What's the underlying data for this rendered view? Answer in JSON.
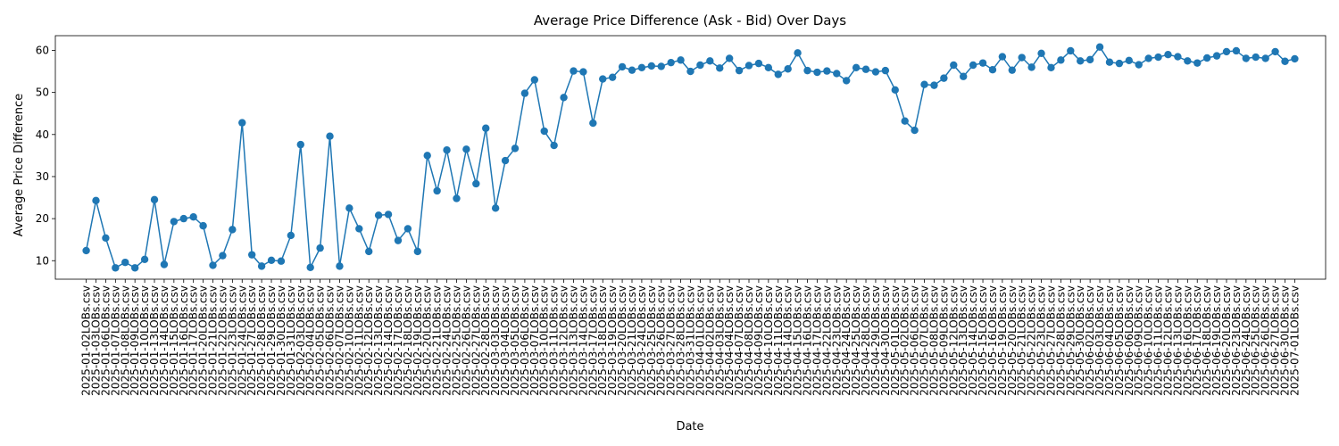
{
  "chart_data": {
    "type": "line",
    "title": "Average Price Difference (Ask - Bid) Over Days",
    "xlabel": "Date",
    "ylabel": "Average Price Difference",
    "ylim": [
      5.6,
      63.5
    ],
    "yticks": [
      10,
      20,
      30,
      40,
      50,
      60
    ],
    "grid": false,
    "line_color": "#1f77b4",
    "marker": "circle",
    "x": [
      "2025-01-02LOBs.csv",
      "2025-01-03LOBs.csv",
      "2025-01-06LOBs.csv",
      "2025-01-07LOBs.csv",
      "2025-01-08LOBs.csv",
      "2025-01-09LOBs.csv",
      "2025-01-10LOBs.csv",
      "2025-01-13LOBs.csv",
      "2025-01-14LOBs.csv",
      "2025-01-15LOBs.csv",
      "2025-01-16LOBs.csv",
      "2025-01-17LOBs.csv",
      "2025-01-20LOBs.csv",
      "2025-01-21LOBs.csv",
      "2025-01-22LOBs.csv",
      "2025-01-23LOBs.csv",
      "2025-01-24LOBs.csv",
      "2025-01-27LOBs.csv",
      "2025-01-28LOBs.csv",
      "2025-01-29LOBs.csv",
      "2025-01-30LOBs.csv",
      "2025-01-31LOBs.csv",
      "2025-02-03LOBs.csv",
      "2025-02-04LOBs.csv",
      "2025-02-05LOBs.csv",
      "2025-02-06LOBs.csv",
      "2025-02-07LOBs.csv",
      "2025-02-10LOBs.csv",
      "2025-02-11LOBs.csv",
      "2025-02-12LOBs.csv",
      "2025-02-13LOBs.csv",
      "2025-02-14LOBs.csv",
      "2025-02-17LOBs.csv",
      "2025-02-18LOBs.csv",
      "2025-02-19LOBs.csv",
      "2025-02-20LOBs.csv",
      "2025-02-21LOBs.csv",
      "2025-02-24LOBs.csv",
      "2025-02-25LOBs.csv",
      "2025-02-26LOBs.csv",
      "2025-02-27LOBs.csv",
      "2025-02-28LOBs.csv",
      "2025-03-03LOBs.csv",
      "2025-03-04LOBs.csv",
      "2025-03-05LOBs.csv",
      "2025-03-06LOBs.csv",
      "2025-03-07LOBs.csv",
      "2025-03-10LOBs.csv",
      "2025-03-11LOBs.csv",
      "2025-03-12LOBs.csv",
      "2025-03-13LOBs.csv",
      "2025-03-14LOBs.csv",
      "2025-03-17LOBs.csv",
      "2025-03-18LOBs.csv",
      "2025-03-19LOBs.csv",
      "2025-03-20LOBs.csv",
      "2025-03-21LOBs.csv",
      "2025-03-24LOBs.csv",
      "2025-03-25LOBs.csv",
      "2025-03-26LOBs.csv",
      "2025-03-27LOBs.csv",
      "2025-03-28LOBs.csv",
      "2025-03-31LOBs.csv",
      "2025-04-01LOBs.csv",
      "2025-04-02LOBs.csv",
      "2025-04-03LOBs.csv",
      "2025-04-04LOBs.csv",
      "2025-04-07LOBs.csv",
      "2025-04-08LOBs.csv",
      "2025-04-09LOBs.csv",
      "2025-04-10LOBs.csv",
      "2025-04-11LOBs.csv",
      "2025-04-14LOBs.csv",
      "2025-04-15LOBs.csv",
      "2025-04-16LOBs.csv",
      "2025-04-17LOBs.csv",
      "2025-04-22LOBs.csv",
      "2025-04-23LOBs.csv",
      "2025-04-24LOBs.csv",
      "2025-04-25LOBs.csv",
      "2025-04-28LOBs.csv",
      "2025-04-29LOBs.csv",
      "2025-04-30LOBs.csv",
      "2025-05-01LOBs.csv",
      "2025-05-02LOBs.csv",
      "2025-05-06LOBs.csv",
      "2025-05-07LOBs.csv",
      "2025-05-08LOBs.csv",
      "2025-05-09LOBs.csv",
      "2025-05-12LOBs.csv",
      "2025-05-13LOBs.csv",
      "2025-05-14LOBs.csv",
      "2025-05-15LOBs.csv",
      "2025-05-16LOBs.csv",
      "2025-05-19LOBs.csv",
      "2025-05-20LOBs.csv",
      "2025-05-21LOBs.csv",
      "2025-05-22LOBs.csv",
      "2025-05-23LOBs.csv",
      "2025-05-27LOBs.csv",
      "2025-05-28LOBs.csv",
      "2025-05-29LOBs.csv",
      "2025-05-30LOBs.csv",
      "2025-06-02LOBs.csv",
      "2025-06-03LOBs.csv",
      "2025-06-04LOBs.csv",
      "2025-06-05LOBs.csv",
      "2025-06-06LOBs.csv",
      "2025-06-09LOBs.csv",
      "2025-06-10LOBs.csv",
      "2025-06-11LOBs.csv",
      "2025-06-12LOBs.csv",
      "2025-06-13LOBs.csv",
      "2025-06-16LOBs.csv",
      "2025-06-17LOBs.csv",
      "2025-06-18LOBs.csv",
      "2025-06-19LOBs.csv",
      "2025-06-20LOBs.csv",
      "2025-06-23LOBs.csv",
      "2025-06-24LOBs.csv",
      "2025-06-25LOBs.csv",
      "2025-06-26LOBs.csv",
      "2025-06-27LOBs.csv",
      "2025-06-30LOBs.csv",
      "2025-07-01LOBs.csv"
    ],
    "series": [
      {
        "values": [
          12.4,
          24.3,
          15.4,
          8.3,
          9.6,
          8.3,
          10.3,
          24.5,
          9.1,
          19.3,
          20.0,
          20.4,
          18.3,
          8.9,
          11.2,
          17.4,
          42.8,
          11.4,
          8.7,
          10.1,
          9.9,
          16.0,
          37.6,
          8.4,
          13.0,
          39.6,
          8.7,
          22.5,
          17.6,
          12.2,
          20.8,
          21.0,
          14.8,
          17.6,
          12.2,
          35.0,
          26.6,
          36.3,
          24.8,
          36.5,
          28.3,
          41.5,
          22.5,
          33.8,
          36.7,
          49.8,
          53.0,
          40.8,
          37.4,
          48.8,
          55.1,
          54.9,
          42.7,
          53.2,
          53.6,
          56.1,
          55.3,
          55.9,
          56.3,
          56.2,
          57.1,
          57.7,
          55.0,
          56.5,
          57.5,
          55.8,
          58.1,
          55.2,
          56.4,
          56.9,
          55.9,
          54.3,
          55.6,
          59.4,
          55.2,
          54.8,
          55.1,
          54.5,
          52.8,
          55.9,
          55.5,
          54.9,
          55.2,
          50.6,
          43.2,
          41.0,
          51.9,
          51.7,
          53.4,
          56.5,
          53.8,
          56.5,
          57.0,
          55.4,
          58.5,
          55.3,
          58.3,
          56.0,
          59.3,
          55.9,
          57.7,
          59.9,
          57.5,
          57.8,
          60.8,
          57.2,
          56.9,
          57.6,
          56.6,
          58.1,
          58.4,
          59.0,
          58.5,
          57.5,
          57.0,
          58.2,
          58.7,
          59.7,
          59.9,
          58.1,
          58.4,
          58.1,
          59.7,
          57.4,
          58.0
        ]
      }
    ]
  }
}
